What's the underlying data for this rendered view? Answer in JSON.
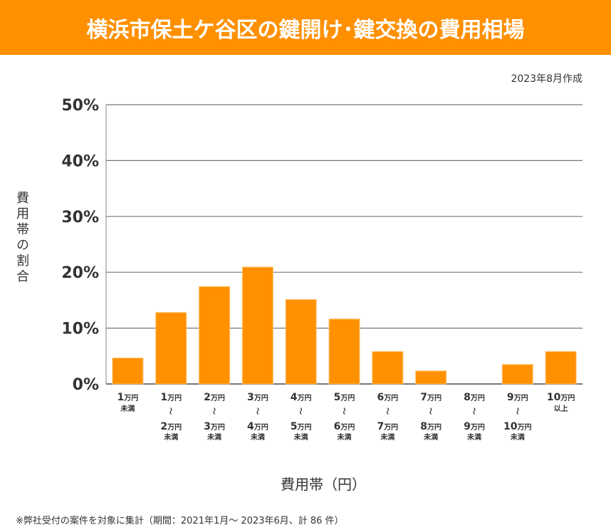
{
  "header": {
    "title": "横浜市保土ケ谷区の鍵開け･鍵交換の費用相場",
    "created": "2023年8月作成"
  },
  "footnote": "※弊社受付の案件を対象に集計（期間：2021年1月～ 2023年6月、計 86 件）",
  "colors": {
    "header_bg": "#ff9000",
    "bar": "#ff9000",
    "grid": "#777777"
  },
  "chart_data": {
    "type": "bar",
    "title": "横浜市保土ケ谷区の鍵開け･鍵交換の費用相場",
    "xlabel": "費用帯（円）",
    "ylabel": "費用帯の割合",
    "ylim": [
      0,
      50
    ],
    "yticks": [
      0,
      10,
      20,
      30,
      40,
      50
    ],
    "ytick_labels": [
      "0%",
      "10%",
      "20%",
      "30%",
      "40%",
      "50%"
    ],
    "grid": true,
    "legend": "none",
    "categories": [
      {
        "from": "1万円",
        "to": null,
        "suffix": "未満"
      },
      {
        "from": "1万円",
        "to": "2万円",
        "suffix": "未満"
      },
      {
        "from": "2万円",
        "to": "3万円",
        "suffix": "未満"
      },
      {
        "from": "3万円",
        "to": "4万円",
        "suffix": "未満"
      },
      {
        "from": "4万円",
        "to": "5万円",
        "suffix": "未満"
      },
      {
        "from": "5万円",
        "to": "6万円",
        "suffix": "未満"
      },
      {
        "from": "6万円",
        "to": "7万円",
        "suffix": "未満"
      },
      {
        "from": "7万円",
        "to": "8万円",
        "suffix": "未満"
      },
      {
        "from": "8万円",
        "to": "9万円",
        "suffix": "未満"
      },
      {
        "from": "9万円",
        "to": "10万円",
        "suffix": "未満"
      },
      {
        "from": "10万円",
        "to": null,
        "suffix": "以上"
      }
    ],
    "values": [
      4.65,
      12.79,
      17.44,
      20.93,
      15.12,
      11.63,
      5.81,
      2.33,
      0,
      3.49,
      5.81
    ],
    "counts_estimated": [
      4,
      11,
      15,
      18,
      13,
      10,
      5,
      2,
      0,
      3,
      5
    ],
    "total_cases": 86,
    "unit": "%"
  }
}
